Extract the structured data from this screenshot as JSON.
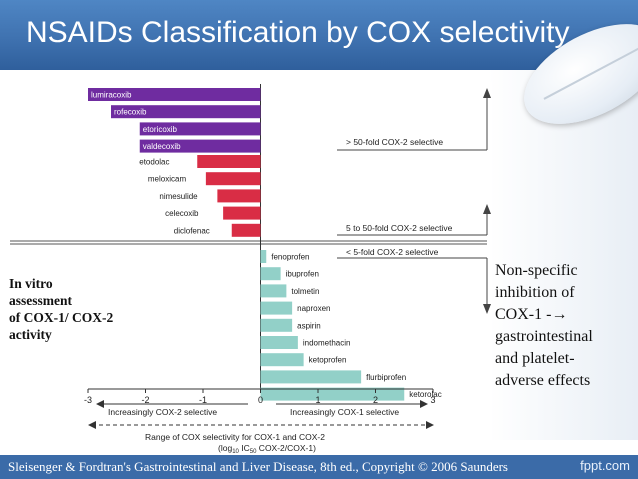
{
  "slide": {
    "title": "NSAIDs Classification by COX selectivity",
    "left_note": [
      "In vitro",
      "assessment",
      "of COX-1/ COX-2",
      "activity"
    ],
    "right_note": [
      "Non-specific",
      "inhibition of",
      "COX-1 -→",
      "gastrointestinal",
      "and platelet-",
      "adverse effects"
    ],
    "footer_citation": "Sleisenger & Fordtran's Gastrointestinal and Liver Disease, 8th ed., Copyright © 2006 Saunders",
    "footer_brand": "fppt.com"
  },
  "chart_data": {
    "type": "bar",
    "orientation": "horizontal",
    "categories": [
      "lumiracoxib",
      "rofecoxib",
      "etoricoxib",
      "valdecoxib",
      "etodolac",
      "meloxicam",
      "nimesulide",
      "celecoxib",
      "diclofenac",
      "fenoprofen",
      "ibuprofen",
      "tolmetin",
      "naproxen",
      "aspirin",
      "indomethacin",
      "ketoprofen",
      "flurbiprofen",
      "ketorolac"
    ],
    "values": [
      -3.0,
      -2.6,
      -2.1,
      -2.1,
      -1.1,
      -0.95,
      -0.75,
      -0.65,
      -0.5,
      0.1,
      0.35,
      0.45,
      0.55,
      0.55,
      0.65,
      0.75,
      1.75,
      2.5
    ],
    "groups": [
      {
        "label": "> 50-fold COX-2 selective",
        "color": "#6f2ca0",
        "members": [
          "lumiracoxib",
          "rofecoxib",
          "etoricoxib",
          "valdecoxib"
        ]
      },
      {
        "label": "5 to 50-fold COX-2 selective",
        "color": "#d92d45",
        "members": [
          "etodolac",
          "meloxicam",
          "nimesulide",
          "celecoxib",
          "diclofenac"
        ]
      },
      {
        "label": "< 5-fold COX-2 selective",
        "color": "#92d0c8",
        "members": [
          "fenoprofen",
          "ibuprofen",
          "tolmetin",
          "naproxen",
          "aspirin",
          "indomethacin",
          "ketoprofen",
          "flurbiprofen",
          "ketorolac"
        ]
      }
    ],
    "xlim": [
      -3,
      3
    ],
    "xticks": [
      "-3",
      "-2",
      "-1",
      "0",
      "1",
      "2",
      "3"
    ],
    "x_left_label": "Increasingly COX-2 selective",
    "x_right_label": "Increasingly COX-1 selective",
    "range_label_1": "Range of COX selectivity for COX-1 and COX-2",
    "range_label_2": "(log",
    "range_label_sub": "10",
    "range_label_3": " IC",
    "range_label_sub2": "50",
    "range_label_4": " COX-2/COX-1)",
    "grid": false
  }
}
